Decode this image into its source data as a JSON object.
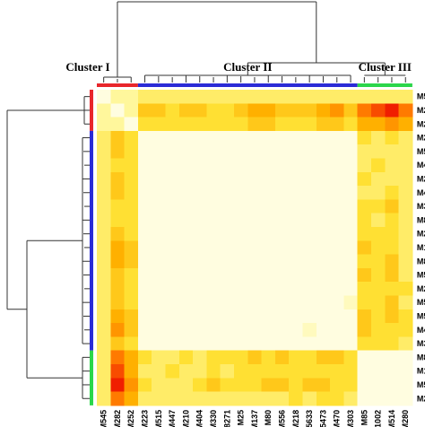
{
  "chart_data": {
    "type": "heatmap",
    "title": "",
    "labels": [
      "M545",
      "M282",
      "M252",
      "M223",
      "M515",
      "M447",
      "M210",
      "M404",
      "M330",
      "M8271",
      "M25",
      "M137",
      "M80",
      "M556",
      "M218",
      "M5633",
      "M5473",
      "M470",
      "M303",
      "M85",
      "M1002",
      "M514",
      "M280"
    ],
    "clusters": [
      {
        "name": "Cluster I",
        "members": [
          "M545",
          "M282",
          "M252"
        ],
        "color": "#e8262b"
      },
      {
        "name": "Cluster II",
        "members": [
          "M223",
          "M515",
          "M447",
          "M210",
          "M404",
          "M330",
          "M8271",
          "M25",
          "M137",
          "M80",
          "M556",
          "M218",
          "M5633",
          "M5473",
          "M470",
          "M303"
        ],
        "color": "#2b2bd6"
      },
      {
        "name": "Cluster III",
        "members": [
          "M85",
          "M1002",
          "M514",
          "M280"
        ],
        "color": "#2bd64a"
      }
    ],
    "value_scale": {
      "min": 0,
      "max": 10,
      "colors": [
        "#fffde0",
        "#fff79c",
        "#ffe033",
        "#ffb000",
        "#ff7a00",
        "#f01e00"
      ],
      "meaning": "distance between samples (low = pale, high = red)"
    },
    "values": [
      [
        0,
        2,
        2,
        3,
        3,
        3,
        3,
        3,
        3,
        3,
        3,
        3,
        3,
        3,
        3,
        3,
        3,
        3,
        3,
        3,
        3,
        3,
        3
      ],
      [
        2,
        0,
        2,
        5,
        5,
        4,
        5,
        5,
        4,
        4,
        5,
        6,
        6,
        5,
        5,
        5,
        6,
        7,
        5,
        8,
        9,
        10,
        8
      ],
      [
        2,
        2,
        0,
        4,
        4,
        4,
        4,
        4,
        4,
        4,
        4,
        5,
        5,
        4,
        4,
        4,
        5,
        5,
        4,
        6,
        6,
        7,
        6
      ],
      [
        3,
        5,
        4,
        0,
        0,
        0,
        0,
        0,
        0,
        0,
        0,
        0,
        0,
        0,
        0,
        0,
        0,
        0,
        0,
        4,
        3,
        4,
        3
      ],
      [
        3,
        5,
        4,
        0,
        0,
        0,
        0,
        0,
        0,
        0,
        0,
        0,
        0,
        0,
        0,
        0,
        0,
        0,
        0,
        3,
        3,
        3,
        3
      ],
      [
        3,
        4,
        4,
        0,
        0,
        0,
        0,
        0,
        0,
        0,
        0,
        0,
        0,
        0,
        0,
        0,
        0,
        0,
        0,
        3,
        4,
        3,
        3
      ],
      [
        3,
        5,
        4,
        0,
        0,
        0,
        0,
        0,
        0,
        0,
        0,
        0,
        0,
        0,
        0,
        0,
        0,
        0,
        0,
        4,
        3,
        3,
        3
      ],
      [
        3,
        5,
        4,
        0,
        0,
        0,
        0,
        0,
        0,
        0,
        0,
        0,
        0,
        0,
        0,
        0,
        0,
        0,
        0,
        3,
        3,
        4,
        3
      ],
      [
        3,
        4,
        4,
        0,
        0,
        0,
        0,
        0,
        0,
        0,
        0,
        0,
        0,
        0,
        0,
        0,
        0,
        0,
        0,
        4,
        4,
        5,
        3
      ],
      [
        3,
        4,
        4,
        0,
        0,
        0,
        0,
        0,
        0,
        0,
        0,
        0,
        0,
        0,
        0,
        0,
        0,
        0,
        0,
        4,
        3,
        4,
        3
      ],
      [
        3,
        5,
        4,
        0,
        0,
        0,
        0,
        0,
        0,
        0,
        0,
        0,
        0,
        0,
        0,
        0,
        0,
        0,
        0,
        4,
        4,
        4,
        3
      ],
      [
        3,
        6,
        5,
        0,
        0,
        0,
        0,
        0,
        0,
        0,
        0,
        0,
        0,
        0,
        0,
        0,
        0,
        0,
        0,
        5,
        4,
        4,
        3
      ],
      [
        3,
        6,
        5,
        0,
        0,
        0,
        0,
        0,
        0,
        0,
        0,
        0,
        0,
        0,
        0,
        0,
        0,
        0,
        0,
        4,
        4,
        5,
        3
      ],
      [
        3,
        5,
        4,
        0,
        0,
        0,
        0,
        0,
        0,
        0,
        0,
        0,
        0,
        0,
        0,
        0,
        0,
        0,
        0,
        5,
        4,
        5,
        3
      ],
      [
        3,
        5,
        4,
        0,
        0,
        0,
        0,
        0,
        0,
        0,
        0,
        0,
        0,
        0,
        0,
        0,
        0,
        0,
        0,
        4,
        4,
        4,
        4
      ],
      [
        3,
        5,
        4,
        0,
        0,
        0,
        0,
        0,
        0,
        0,
        0,
        0,
        0,
        0,
        0,
        0,
        0,
        0,
        1,
        4,
        4,
        5,
        3
      ],
      [
        3,
        6,
        5,
        0,
        0,
        0,
        0,
        0,
        0,
        0,
        0,
        0,
        0,
        0,
        0,
        0,
        0,
        0,
        0,
        5,
        4,
        5,
        4
      ],
      [
        3,
        7,
        5,
        0,
        0,
        0,
        0,
        0,
        0,
        0,
        0,
        0,
        0,
        0,
        0,
        1,
        0,
        0,
        0,
        5,
        4,
        4,
        4
      ],
      [
        3,
        5,
        4,
        0,
        0,
        0,
        0,
        0,
        0,
        0,
        0,
        0,
        0,
        0,
        0,
        0,
        0,
        0,
        0,
        4,
        4,
        4,
        3
      ],
      [
        3,
        8,
        6,
        4,
        3,
        3,
        4,
        3,
        4,
        4,
        4,
        5,
        4,
        5,
        4,
        4,
        5,
        5,
        4,
        0,
        0,
        0,
        0
      ],
      [
        3,
        9,
        6,
        3,
        3,
        4,
        3,
        3,
        4,
        3,
        4,
        4,
        4,
        4,
        4,
        4,
        4,
        4,
        4,
        0,
        0,
        0,
        0
      ],
      [
        3,
        10,
        7,
        4,
        3,
        3,
        3,
        4,
        5,
        4,
        4,
        4,
        5,
        5,
        4,
        5,
        5,
        4,
        4,
        0,
        0,
        0,
        0
      ],
      [
        3,
        8,
        6,
        3,
        3,
        3,
        3,
        3,
        3,
        3,
        3,
        3,
        3,
        3,
        4,
        3,
        4,
        4,
        3,
        0,
        0,
        0,
        0
      ]
    ]
  }
}
